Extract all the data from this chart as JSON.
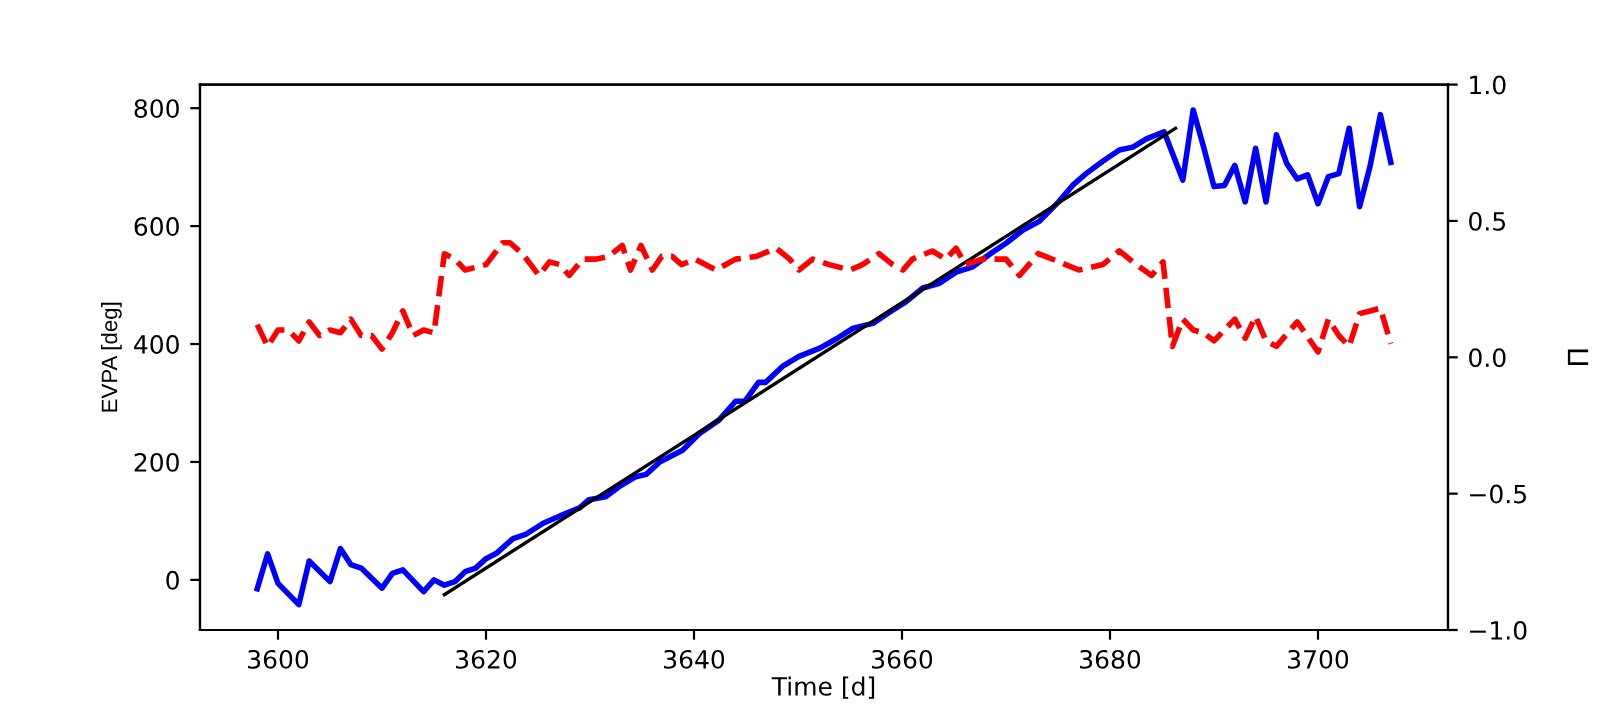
{
  "chart_data": {
    "type": "line",
    "xlabel": "Time [d]",
    "ylabel": "EVPA [deg]",
    "y2label": "Π",
    "xlim": [
      3592.5,
      3712.5
    ],
    "xticks": [
      3600,
      3620,
      3640,
      3660,
      3680,
      3700
    ],
    "ylim": [
      -85,
      840
    ],
    "yticks": [
      0,
      200,
      400,
      600,
      800
    ],
    "y2lim": [
      -1.0,
      1.0
    ],
    "y2ticks": [
      {
        "value": -1.0,
        "label": "−1.0"
      },
      {
        "value": -0.5,
        "label": "−0.5"
      },
      {
        "value": 0.0,
        "label": "0.0"
      },
      {
        "value": 0.5,
        "label": "0.5"
      },
      {
        "value": 1.0,
        "label": "1.0"
      }
    ],
    "grid": false,
    "legend": false,
    "series": [
      {
        "color": "#0000ff",
        "line_style": "solid",
        "x": [
          3598,
          3599,
          3600,
          3602,
          3603,
          3605,
          3606,
          3607,
          3608,
          3610,
          3611,
          3612,
          3614,
          3615,
          3616,
          3617,
          3618,
          3619,
          3620,
          3621,
          3622.6,
          3623.8,
          3625.5,
          3627.7,
          3629,
          3629.9,
          3631.5,
          3632.8,
          3634.4,
          3635.4,
          3636.7,
          3638.9,
          3640.5,
          3642.4,
          3644,
          3644.9,
          3646.2,
          3646.9,
          3648.5,
          3650.1,
          3652.1,
          3653.7,
          3655.3,
          3657.2,
          3658.8,
          3660.4,
          3662,
          3663.6,
          3665.2,
          3666.8,
          3668.4,
          3670,
          3671.6,
          3673.2,
          3675.1,
          3676.4,
          3677.7,
          3679.3,
          3680.9,
          3682.2,
          3683.5,
          3685.2,
          3687,
          3688,
          3689,
          3690,
          3691,
          3692,
          3693,
          3694,
          3695,
          3696,
          3697,
          3698,
          3699,
          3700,
          3701,
          3702,
          3703,
          3704,
          3705,
          3706,
          3707
        ],
        "values": [
          -15,
          44,
          -6,
          -42,
          32,
          -3,
          53,
          26,
          20,
          -14,
          11,
          17,
          -20,
          0,
          -9,
          -3,
          14,
          20,
          36,
          45,
          70,
          77,
          96,
          113,
          122,
          136,
          141,
          158,
          175,
          179,
          200,
          220,
          248,
          271,
          303,
          303,
          335,
          335,
          362,
          379,
          393,
          409,
          427,
          435,
          454,
          472,
          495,
          503,
          522,
          531,
          552,
          571,
          593,
          608,
          642,
          669,
          689,
          710,
          729,
          734,
          748,
          760,
          678,
          797,
          734,
          667,
          669,
          703,
          641,
          732,
          641,
          755,
          706,
          680,
          687,
          638,
          684,
          689,
          766,
          633,
          701,
          789,
          708
        ]
      },
      {
        "color": "#ff0000",
        "line_style": "dashed",
        "axis": "y2",
        "x": [
          3598,
          3599,
          3600,
          3601,
          3602,
          3603,
          3604,
          3605,
          3606,
          3607,
          3608,
          3609,
          3610,
          3611,
          3612,
          3613,
          3614,
          3615,
          3616,
          3617,
          3618,
          3619,
          3620,
          3621.6,
          3622.3,
          3623.5,
          3625.1,
          3626.1,
          3627.1,
          3628,
          3629.3,
          3630.6,
          3631.8,
          3633.1,
          3633.9,
          3634.9,
          3636,
          3636.9,
          3637.9,
          3638.8,
          3640.1,
          3642.1,
          3644,
          3646,
          3647.9,
          3649.2,
          3650.1,
          3651.4,
          3653,
          3655,
          3656.2,
          3657.8,
          3659.1,
          3660.1,
          3661,
          3662.9,
          3664.2,
          3665.2,
          3666.1,
          3667.7,
          3670,
          3671.3,
          3673.1,
          3675.1,
          3677,
          3679.3,
          3680.9,
          3682.2,
          3684,
          3685.1,
          3686,
          3687,
          3688,
          3689,
          3690,
          3692,
          3693,
          3694,
          3695,
          3696,
          3698,
          3700,
          3701,
          3702,
          3703,
          3704,
          3705,
          3706,
          3707
        ],
        "values": [
          0.12,
          0.04,
          0.1,
          0.1,
          0.06,
          0.13,
          0.08,
          0.1,
          0.09,
          0.14,
          0.08,
          0.08,
          0.03,
          0.09,
          0.17,
          0.08,
          0.1,
          0.09,
          0.38,
          0.36,
          0.32,
          0.33,
          0.34,
          0.42,
          0.42,
          0.38,
          0.3,
          0.35,
          0.34,
          0.3,
          0.36,
          0.36,
          0.37,
          0.41,
          0.32,
          0.41,
          0.32,
          0.37,
          0.37,
          0.34,
          0.36,
          0.32,
          0.36,
          0.37,
          0.4,
          0.36,
          0.32,
          0.36,
          0.34,
          0.32,
          0.34,
          0.38,
          0.34,
          0.32,
          0.36,
          0.39,
          0.36,
          0.4,
          0.34,
          0.36,
          0.36,
          0.3,
          0.38,
          0.35,
          0.32,
          0.34,
          0.39,
          0.35,
          0.3,
          0.35,
          0.04,
          0.14,
          0.1,
          0.09,
          0.06,
          0.14,
          0.07,
          0.15,
          0.06,
          0.04,
          0.13,
          0.02,
          0.14,
          0.08,
          0.04,
          0.16,
          0.17,
          0.18,
          0.05
        ]
      },
      {
        "color": "#000000",
        "line_style": "solid",
        "x": [
          3616,
          3686.3
        ],
        "values": [
          -25,
          766
        ]
      }
    ]
  }
}
